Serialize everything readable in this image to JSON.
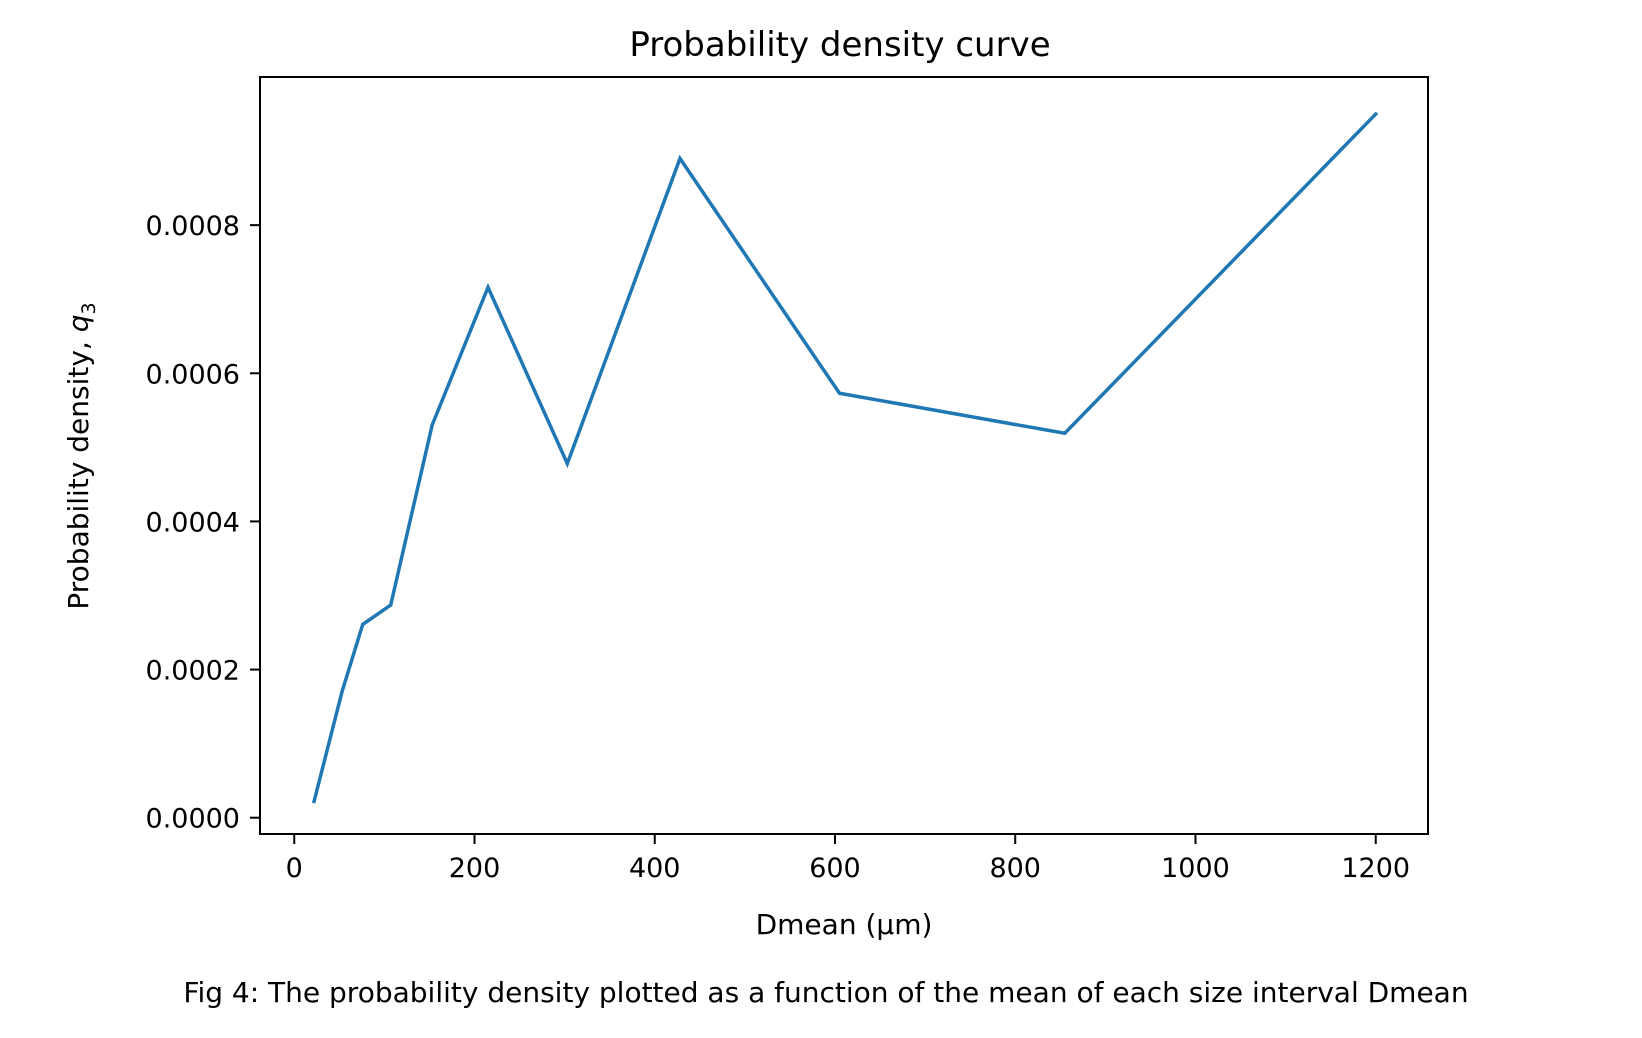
{
  "chart_data": {
    "type": "line",
    "title": "Probability density curve",
    "xlabel": "Dmean (µm)",
    "ylabel": {
      "prefix": "Probability density, ",
      "symbol": "q",
      "subscript": "3"
    },
    "xlim": [
      -38,
      1258
    ],
    "ylim": [
      -2.2e-05,
      0.001
    ],
    "x_ticks": [
      0,
      200,
      400,
      600,
      800,
      1000,
      1200
    ],
    "x_tick_labels": [
      "0",
      "200",
      "400",
      "600",
      "800",
      "1000",
      "1200"
    ],
    "y_ticks": [
      0,
      0.0002,
      0.0004,
      0.0006,
      0.0008
    ],
    "y_tick_labels": [
      "0.0000",
      "0.0002",
      "0.0004",
      "0.0006",
      "0.0008"
    ],
    "grid": false,
    "series": [
      {
        "color": "#1f77b4",
        "x": [
          22,
          53,
          76,
          107,
          153,
          215,
          303,
          428,
          605,
          855,
          1200
        ],
        "y": [
          2.2e-05,
          0.00017,
          0.000261,
          0.000287,
          0.00053,
          0.000716,
          0.000478,
          0.00089,
          0.000573,
          0.000519,
          0.00095
        ]
      }
    ]
  },
  "caption": "Fig 4: The probability density plotted as a function of the mean of each size interval Dmean"
}
